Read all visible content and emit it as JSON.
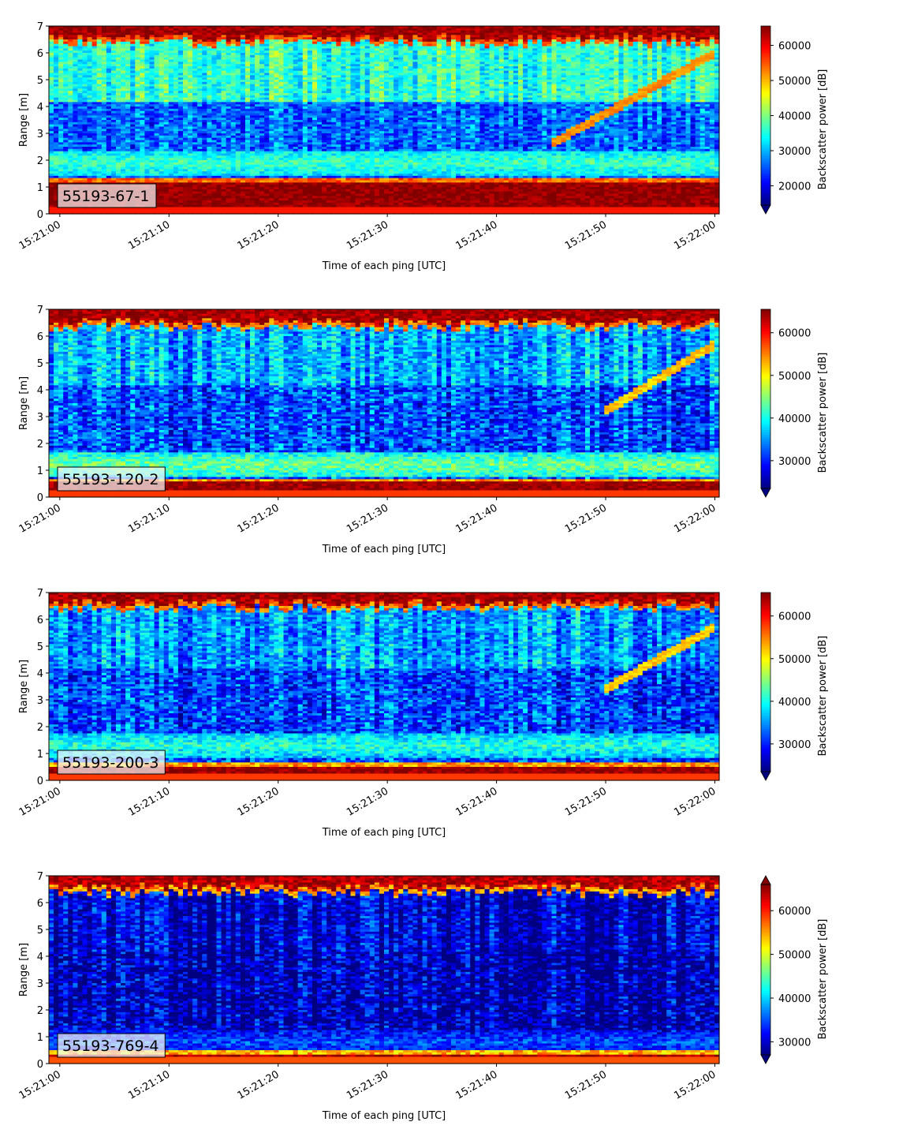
{
  "chart_data": [
    {
      "type": "heatmap",
      "panel_label": "55193-67-1",
      "xlabel": "Time of each ping [UTC]",
      "ylabel": "Range [m]",
      "x_ticks": [
        "15:21:00",
        "15:21:10",
        "15:21:20",
        "15:21:30",
        "15:21:40",
        "15:21:50",
        "15:22:00"
      ],
      "x_range_seconds": [
        -1,
        60.4
      ],
      "y_ticks": [
        0,
        1,
        2,
        3,
        4,
        5,
        6,
        7
      ],
      "ylim": [
        0,
        7
      ],
      "colorbar": {
        "label": "Backscatter power [dB]",
        "colormap": "jet",
        "range": [
          14500,
          65500
        ],
        "ticks": [
          20000,
          30000,
          40000,
          50000,
          60000
        ],
        "tick_labels": [
          "20000",
          "30000",
          "40000",
          "50000",
          "60000"
        ],
        "extend": "min"
      },
      "features": {
        "bottom_band_top": 1.15,
        "surface_band_bottom": 6.55,
        "mid_band": {
          "center": 1.9,
          "level": 37000
        },
        "background_level": 26000,
        "upper_noise_level": 36000,
        "tracked_target": {
          "start_seconds": 45,
          "start_range": 2.6,
          "end_seconds": 60,
          "end_range": 6.0
        }
      }
    },
    {
      "type": "heatmap",
      "panel_label": "55193-120-2",
      "xlabel": "Time of each ping [UTC]",
      "ylabel": "Range [m]",
      "x_ticks": [
        "15:21:00",
        "15:21:10",
        "15:21:20",
        "15:21:30",
        "15:21:40",
        "15:21:50",
        "15:22:00"
      ],
      "x_range_seconds": [
        -1,
        60.4
      ],
      "y_ticks": [
        0,
        1,
        2,
        3,
        4,
        5,
        6,
        7
      ],
      "ylim": [
        0,
        7
      ],
      "colorbar": {
        "label": "Backscatter power [dB]",
        "colormap": "jet",
        "range": [
          23500,
          65500
        ],
        "ticks": [
          30000,
          40000,
          50000,
          60000
        ],
        "tick_labels": [
          "30000",
          "40000",
          "50000",
          "60000"
        ],
        "extend": "min"
      },
      "features": {
        "bottom_band_top": 0.55,
        "surface_band_bottom": 6.5,
        "mid_band": {
          "center": 1.2,
          "level": 44000
        },
        "background_level": 32000,
        "upper_noise_level": 36000,
        "tracked_target": {
          "start_seconds": 50,
          "start_range": 3.2,
          "end_seconds": 60,
          "end_range": 5.7
        }
      }
    },
    {
      "type": "heatmap",
      "panel_label": "55193-200-3",
      "xlabel": "Time of each ping [UTC]",
      "ylabel": "Range [m]",
      "x_ticks": [
        "15:21:00",
        "15:21:10",
        "15:21:20",
        "15:21:30",
        "15:21:40",
        "15:21:50",
        "15:22:00"
      ],
      "x_range_seconds": [
        -1,
        60.4
      ],
      "y_ticks": [
        0,
        1,
        2,
        3,
        4,
        5,
        6,
        7
      ],
      "ylim": [
        0,
        7
      ],
      "colorbar": {
        "label": "Backscatter power [dB]",
        "colormap": "jet",
        "range": [
          23500,
          65500
        ],
        "ticks": [
          30000,
          40000,
          50000,
          60000
        ],
        "tick_labels": [
          "30000",
          "40000",
          "50000",
          "60000"
        ],
        "extend": "min"
      },
      "features": {
        "bottom_band_top": 0.5,
        "surface_band_bottom": 6.6,
        "mid_band": {
          "center": 1.3,
          "level": 41000
        },
        "background_level": 31500,
        "upper_noise_level": 35000,
        "tracked_target": {
          "start_seconds": 50,
          "start_range": 3.4,
          "end_seconds": 60,
          "end_range": 5.7
        }
      }
    },
    {
      "type": "heatmap",
      "panel_label": "55193-769-4",
      "xlabel": "Time of each ping [UTC]",
      "ylabel": "Range [m]",
      "x_ticks": [
        "15:21:00",
        "15:21:10",
        "15:21:20",
        "15:21:30",
        "15:21:40",
        "15:21:50",
        "15:22:00"
      ],
      "x_range_seconds": [
        -1,
        60.4
      ],
      "y_ticks": [
        0,
        1,
        2,
        3,
        4,
        5,
        6,
        7
      ],
      "ylim": [
        0,
        7
      ],
      "colorbar": {
        "label": "Backscatter power [dB]",
        "colormap": "jet",
        "range": [
          27000,
          66000
        ],
        "ticks": [
          30000,
          40000,
          50000,
          60000
        ],
        "tick_labels": [
          "30000",
          "40000",
          "50000",
          "60000"
        ],
        "extend": "both"
      },
      "features": {
        "bottom_band_top": 0.35,
        "surface_band_bottom": 6.55,
        "mid_band": {
          "center": 0.8,
          "level": 35000
        },
        "background_level": 29000,
        "upper_noise_level": 30000,
        "tracked_target": null
      }
    }
  ]
}
